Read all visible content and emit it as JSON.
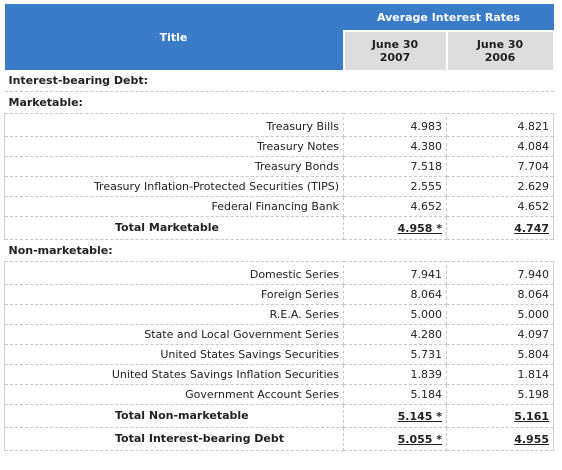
{
  "table": {
    "title": "Title",
    "group_header": "Average Interest Rates",
    "columns": [
      [
        "June 30",
        "2007"
      ],
      [
        "June 30",
        "2006"
      ]
    ],
    "heading": "Interest-bearing Debt:",
    "groups": [
      {
        "name": "Marketable:",
        "rows": [
          {
            "label": "Treasury Bills",
            "values": [
              "4.983",
              "4.821"
            ]
          },
          {
            "label": "Treasury Notes",
            "values": [
              "4.380",
              "4.084"
            ]
          },
          {
            "label": "Treasury Bonds",
            "values": [
              "7.518",
              "7.704"
            ]
          },
          {
            "label": "Treasury Inflation-Protected Securities (TIPS)",
            "values": [
              "2.555",
              "2.629"
            ]
          },
          {
            "label": "Federal Financing Bank",
            "values": [
              "4.652",
              "4.652"
            ]
          }
        ],
        "total": {
          "label": "Total Marketable",
          "values": [
            "4.958 *",
            "4.747"
          ]
        }
      },
      {
        "name": "Non-marketable:",
        "rows": [
          {
            "label": "Domestic Series",
            "values": [
              "7.941",
              "7.940"
            ]
          },
          {
            "label": "Foreign Series",
            "values": [
              "8.064",
              "8.064"
            ]
          },
          {
            "label": "R.E.A. Series",
            "values": [
              "5.000",
              "5.000"
            ]
          },
          {
            "label": "State and Local Government Series",
            "values": [
              "4.280",
              "4.097"
            ]
          },
          {
            "label": "United States Savings Securities",
            "values": [
              "5.731",
              "5.804"
            ]
          },
          {
            "label": "United States Savings Inflation Securities",
            "values": [
              "1.839",
              "1.814"
            ]
          },
          {
            "label": "Government Account Series",
            "values": [
              "5.184",
              "5.198"
            ]
          }
        ],
        "total": {
          "label": "Total Non-marketable",
          "values": [
            "5.145 *",
            "5.161"
          ]
        }
      }
    ],
    "grand_total": {
      "label": "Total Interest-bearing Debt",
      "values": [
        "5.055 *",
        "4.955"
      ]
    }
  }
}
